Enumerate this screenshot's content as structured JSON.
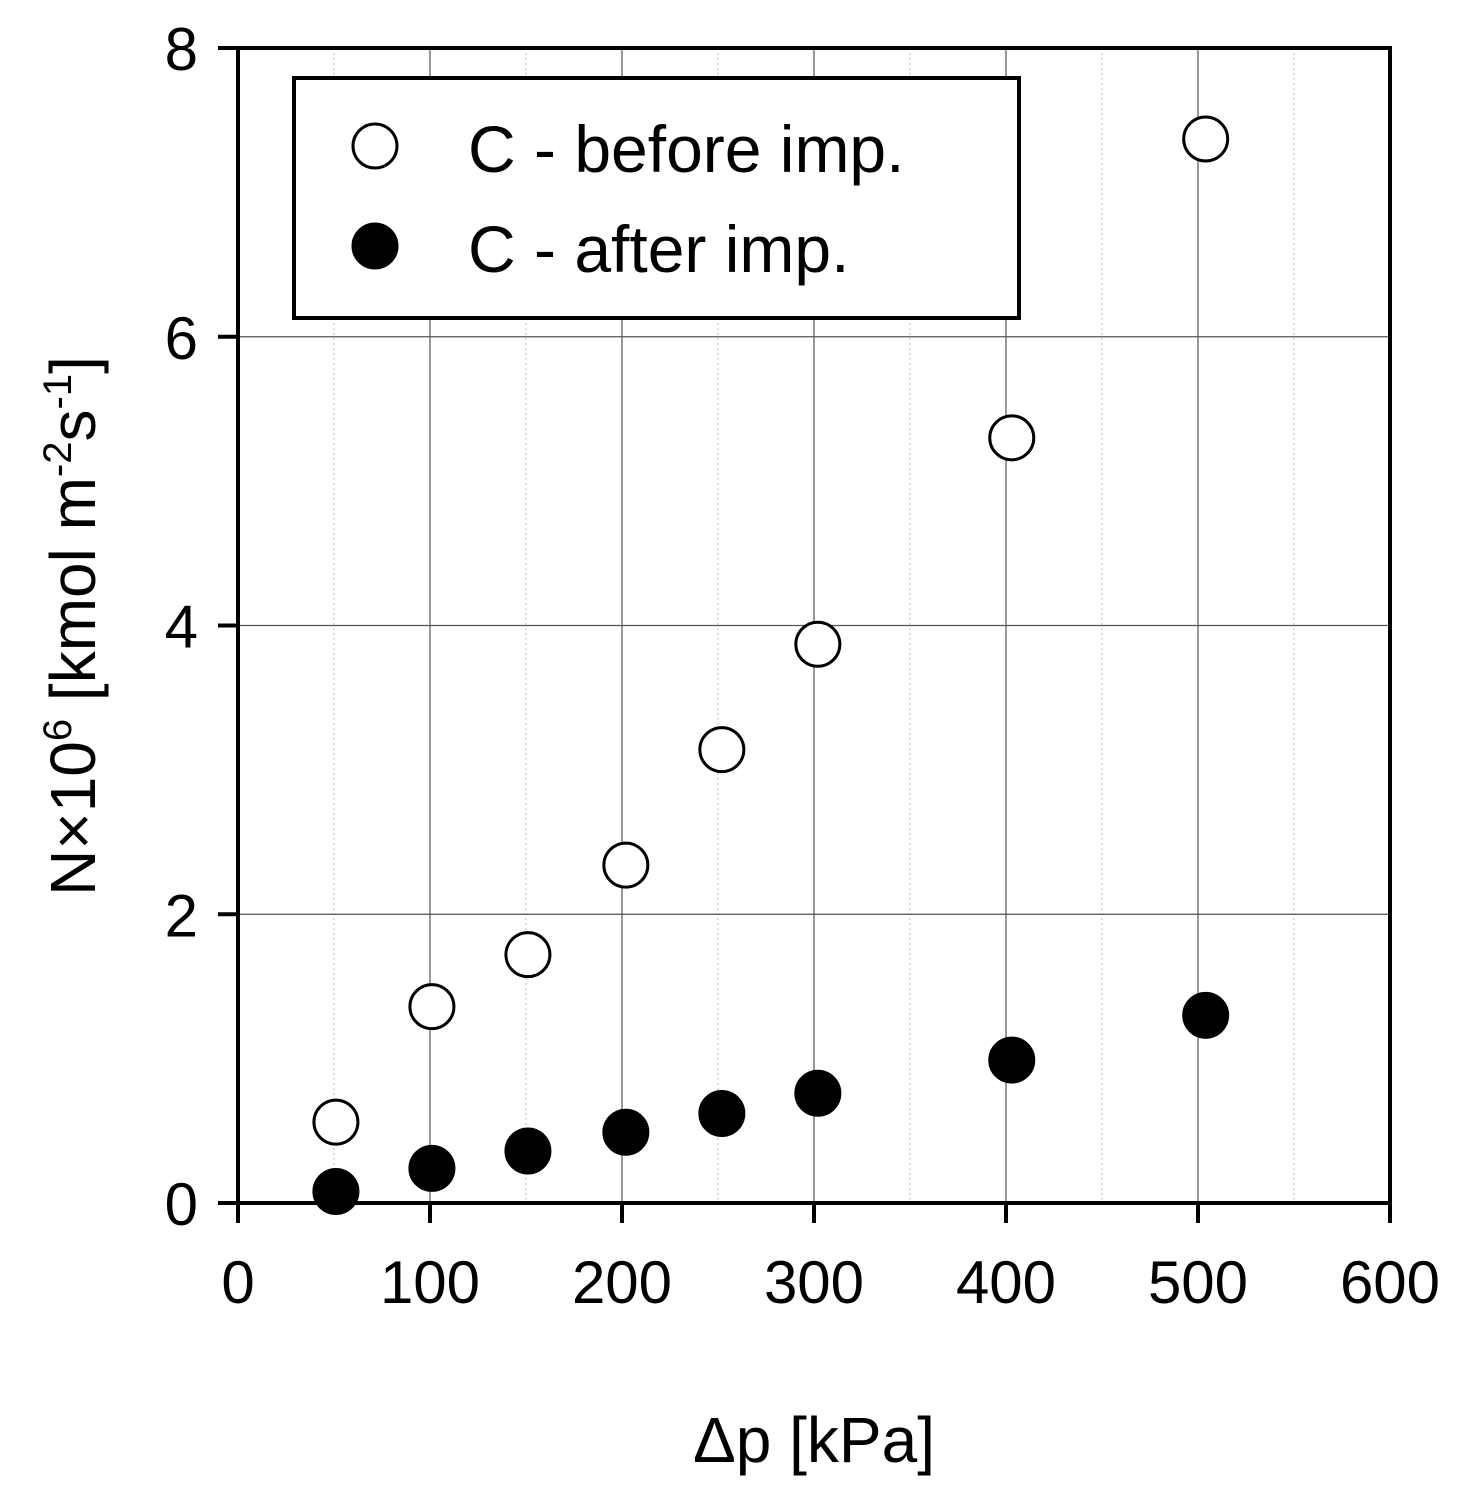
{
  "chart_data": {
    "type": "scatter",
    "title": "",
    "xlabel": "Δp [kPa]",
    "ylabel": {
      "prefix": "N×10",
      "prefix_sup": "6",
      "unit_open": " [kmol m",
      "unit_sup1": "-2",
      "unit_mid": "s",
      "unit_sup2": "-1",
      "unit_close": "]"
    },
    "xlim": [
      0,
      600
    ],
    "ylim": [
      0,
      8
    ],
    "xticks": [
      0,
      100,
      200,
      300,
      400,
      500,
      600
    ],
    "yticks": [
      0,
      2,
      4,
      6,
      8
    ],
    "grid": true,
    "legend_position": "top-left",
    "series": [
      {
        "name": "C - before imp.",
        "marker": "open-circle",
        "x": [
          51,
          101,
          151,
          202,
          252,
          302,
          403,
          504
        ],
        "y": [
          0.56,
          1.36,
          1.72,
          2.34,
          3.14,
          3.87,
          5.3,
          7.37
        ]
      },
      {
        "name": "C - after imp.",
        "marker": "filled-circle",
        "x": [
          51,
          101,
          151,
          202,
          252,
          302,
          403,
          504
        ],
        "y": [
          0.08,
          0.24,
          0.36,
          0.49,
          0.62,
          0.76,
          0.99,
          1.3
        ]
      }
    ]
  }
}
